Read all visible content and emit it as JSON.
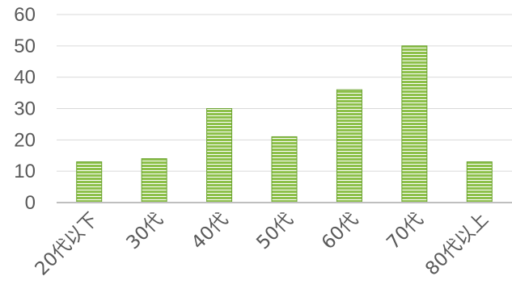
{
  "chart_data": {
    "type": "bar",
    "categories": [
      "20代以下",
      "30代",
      "40代",
      "50代",
      "60代",
      "70代",
      "80代以上"
    ],
    "values": [
      13,
      14,
      30,
      21,
      36,
      50,
      13
    ],
    "ylim": [
      0,
      60
    ],
    "yticks": [
      "0",
      "10",
      "20",
      "30",
      "40",
      "50",
      "60"
    ],
    "grid": true,
    "legend": "none",
    "colors": {
      "bar_fill": "#8dc04a",
      "bar_stripe": "#ffffff",
      "bar_edge": "#6aa22f",
      "grid": "#d9d9d9",
      "axis": "#bfbfbf",
      "tick_text": "#595959"
    }
  }
}
